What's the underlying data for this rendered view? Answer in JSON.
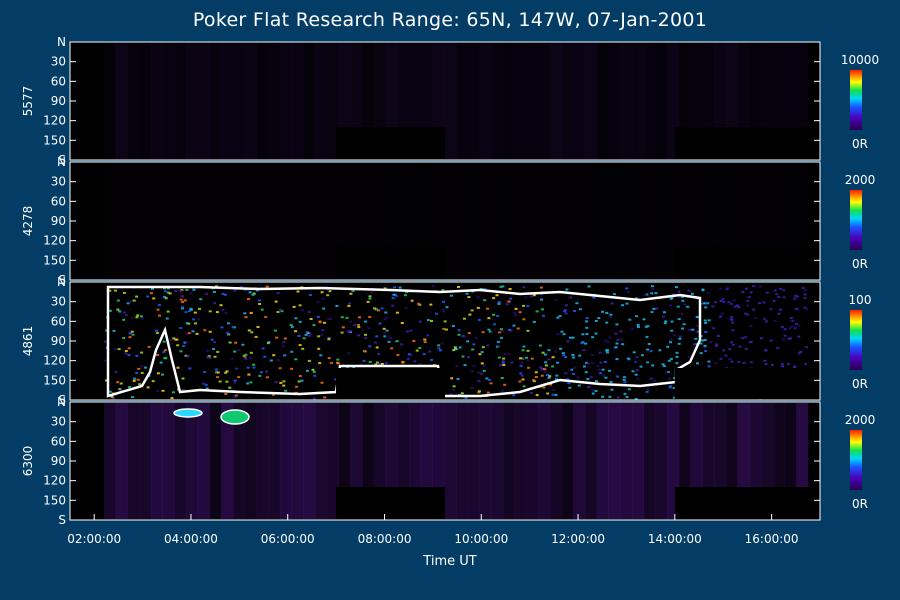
{
  "title": "Poker Flat Research Range: 65N, 147W, 07-Jan-2001",
  "chart_data": {
    "type": "heatmap",
    "title": "Poker Flat Research Range: 65N, 147W, 07-Jan-2001",
    "xlabel": "Time UT",
    "x_ticks": [
      "02:00:00",
      "04:00:00",
      "06:00:00",
      "08:00:00",
      "10:00:00",
      "12:00:00",
      "14:00:00",
      "16:00:00"
    ],
    "x_range_hours": [
      1.5,
      17.0
    ],
    "data_start_hour": 2.2,
    "data_end_hour": 16.75,
    "y_ticks": [
      "N",
      "30",
      "60",
      "90",
      "120",
      "150",
      "S"
    ],
    "y_tick_values": [
      0,
      30,
      60,
      90,
      120,
      150,
      180
    ],
    "gaps": [
      {
        "start_hour": 7.0,
        "end_hour": 9.25
      },
      {
        "start_hour": 14.0,
        "end_hour": 17.0
      }
    ],
    "panels": [
      {
        "wavelength": "5577",
        "colorbar_max": "10000",
        "colorbar_min": "0R",
        "intensity": 0.1
      },
      {
        "wavelength": "4278",
        "colorbar_max": "2000",
        "colorbar_min": "0R",
        "intensity": 0.03
      },
      {
        "wavelength": "4861",
        "colorbar_max": "100",
        "colorbar_min": "0R",
        "intensity": 0.55
      },
      {
        "wavelength": "6300",
        "colorbar_max": "2000",
        "colorbar_min": "0R",
        "intensity": 0.28
      }
    ],
    "grid": false
  }
}
